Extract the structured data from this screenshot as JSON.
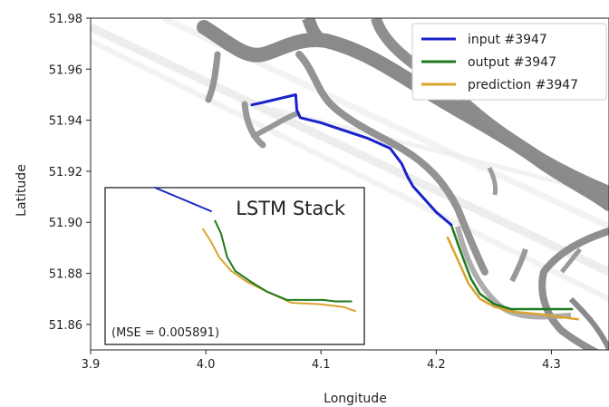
{
  "chart_data": {
    "type": "line",
    "xlabel": "Longitude",
    "ylabel": "Latitude",
    "xlim": [
      3.9,
      4.35
    ],
    "ylim": [
      51.85,
      51.98
    ],
    "x_ticks": [
      "3.9",
      "4.0",
      "4.1",
      "4.2",
      "4.3"
    ],
    "y_ticks": [
      "51.86",
      "51.88",
      "51.90",
      "51.92",
      "51.94",
      "51.96",
      "51.98"
    ],
    "legend_position": "top-right",
    "series": [
      {
        "name": "input #3947",
        "color": "#1a22c9",
        "points": [
          [
            4.04,
            51.946
          ],
          [
            4.05,
            51.947
          ],
          [
            4.078,
            51.95
          ],
          [
            4.079,
            51.944
          ],
          [
            4.082,
            51.941
          ],
          [
            4.1,
            51.939
          ],
          [
            4.12,
            51.936
          ],
          [
            4.14,
            51.933
          ],
          [
            4.16,
            51.929
          ],
          [
            4.17,
            51.923
          ],
          [
            4.175,
            51.918
          ],
          [
            4.18,
            51.914
          ],
          [
            4.19,
            51.909
          ],
          [
            4.2,
            51.904
          ],
          [
            4.213,
            51.899
          ]
        ]
      },
      {
        "name": "output #3947",
        "color": "#1e7a1e",
        "points": [
          [
            4.213,
            51.899
          ],
          [
            4.22,
            51.89
          ],
          [
            4.225,
            51.884
          ],
          [
            4.23,
            51.878
          ],
          [
            4.238,
            51.872
          ],
          [
            4.25,
            51.868
          ],
          [
            4.265,
            51.866
          ],
          [
            4.29,
            51.866
          ],
          [
            4.318,
            51.866
          ]
        ]
      },
      {
        "name": "prediction #3947",
        "color": "#d9a32e",
        "points": [
          [
            4.21,
            51.894
          ],
          [
            4.215,
            51.889
          ],
          [
            4.22,
            51.884
          ],
          [
            4.228,
            51.876
          ],
          [
            4.238,
            51.87
          ],
          [
            4.25,
            51.867
          ],
          [
            4.265,
            51.865
          ],
          [
            4.29,
            51.864
          ],
          [
            4.323,
            51.862
          ]
        ]
      }
    ],
    "inset": {
      "title": "LSTM Stack",
      "mse_label": "(MSE = 0.005891)",
      "input": [
        [
          0.0,
          1.0
        ],
        [
          0.28,
          0.83
        ]
      ],
      "output": [
        [
          0.3,
          0.76
        ],
        [
          0.33,
          0.67
        ],
        [
          0.36,
          0.5
        ],
        [
          0.4,
          0.4
        ],
        [
          0.48,
          0.32
        ],
        [
          0.56,
          0.25
        ],
        [
          0.66,
          0.19
        ],
        [
          0.78,
          0.19
        ],
        [
          0.84,
          0.19
        ],
        [
          0.9,
          0.18
        ],
        [
          0.98,
          0.18
        ]
      ],
      "prediction": [
        [
          0.24,
          0.7
        ],
        [
          0.28,
          0.61
        ],
        [
          0.32,
          0.5
        ],
        [
          0.38,
          0.4
        ],
        [
          0.46,
          0.32
        ],
        [
          0.56,
          0.25
        ],
        [
          0.68,
          0.17
        ],
        [
          0.82,
          0.16
        ],
        [
          0.94,
          0.14
        ],
        [
          1.0,
          0.11
        ]
      ]
    }
  }
}
